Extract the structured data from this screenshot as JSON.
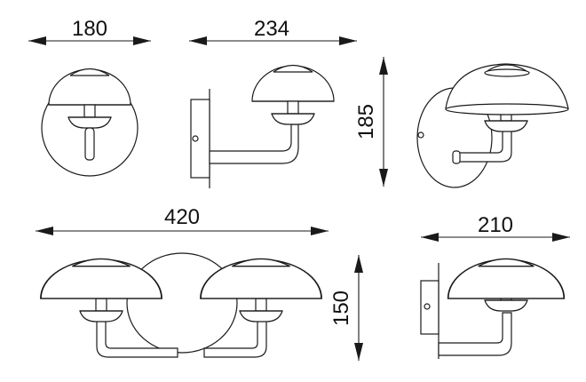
{
  "dimensions": {
    "front_width": "180",
    "side_depth": "234",
    "height": "185",
    "double_width": "420",
    "double_height": "150",
    "double_depth": "210"
  },
  "colors": {
    "line": "#1a1a1a",
    "background": "#ffffff"
  }
}
